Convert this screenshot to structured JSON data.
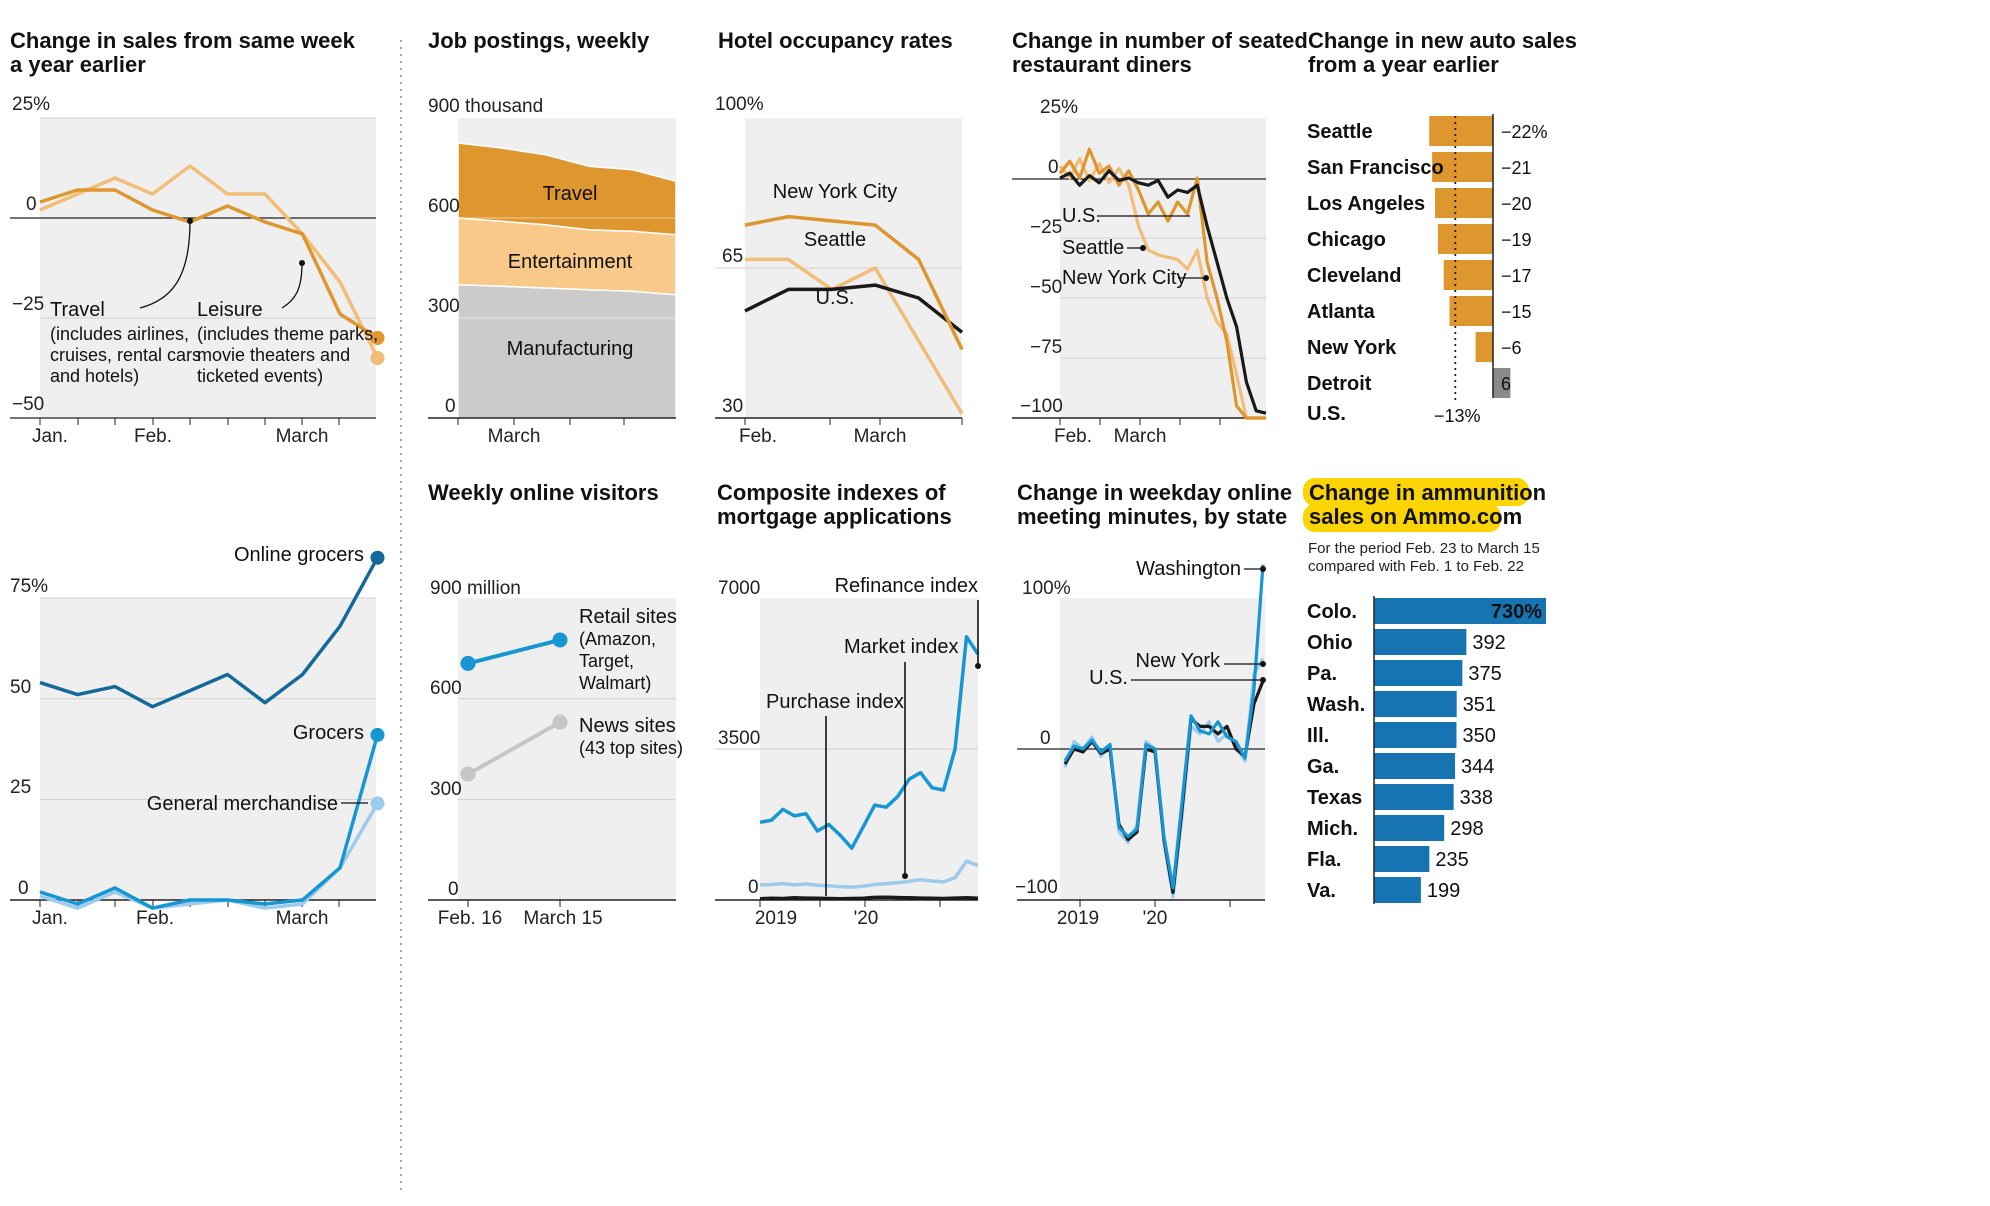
{
  "colors": {
    "orange": "#de962e",
    "light_orange": "#f2bd78",
    "peach": "#f9c98a",
    "gray_area": "#cbcbcb",
    "panel_bg": "#efefef",
    "black": "#1a1a1a",
    "dark_blue": "#14699b",
    "mid_blue": "#1696d2",
    "light_blue": "#9ccbeb",
    "light_gray_line": "#c6c6c6",
    "highlight": "#fbd404",
    "bar_blue": "#1674b3",
    "bar_gray": "#8a8a8a"
  },
  "chart_data": [
    {
      "id": "sales",
      "type": "line",
      "title": "Change in sales from same week a year earlier",
      "x_labels": [
        "Jan.",
        "Feb.",
        "March"
      ],
      "y_ticks": [
        "25%",
        "0",
        "-25",
        "-50"
      ],
      "ylim": [
        -50,
        25
      ],
      "series": [
        {
          "name": "Travel",
          "color_key": "orange",
          "values": [
            4,
            7,
            7,
            2,
            -1,
            3,
            -1,
            -4,
            -24,
            -30
          ]
        },
        {
          "name": "Leisure",
          "color_key": "light_orange",
          "values": [
            2,
            6,
            10,
            6,
            13,
            6,
            6,
            -4,
            -16,
            -35
          ]
        }
      ],
      "annotations": [
        {
          "name": "Travel",
          "detail": [
            "(includes airlines,",
            "cruises, rental cars",
            "and hotels)"
          ]
        },
        {
          "name": "Leisure",
          "detail": [
            "(includes theme parks,",
            "movie theaters and",
            "ticketed events)"
          ]
        }
      ]
    },
    {
      "id": "jobs",
      "type": "area",
      "title": "Job postings, weekly",
      "x_labels": [
        "March"
      ],
      "y_ticks": [
        "900 thousand",
        "600",
        "300",
        "0"
      ],
      "ylim": [
        0,
        900
      ],
      "series": [
        {
          "name": "Manufacturing",
          "color_key": "gray_area",
          "values": [
            400,
            395,
            390,
            385,
            380,
            370
          ]
        },
        {
          "name": "Entertainment",
          "color_key": "peach",
          "values": [
            200,
            195,
            190,
            180,
            180,
            180
          ]
        },
        {
          "name": "Travel",
          "color_key": "orange",
          "values": [
            225,
            220,
            210,
            190,
            185,
            160
          ]
        }
      ]
    },
    {
      "id": "hotel",
      "type": "line",
      "title": "Hotel occupancy rates",
      "x_labels": [
        "Feb.",
        "March"
      ],
      "y_ticks": [
        "100%",
        "65",
        "30"
      ],
      "ylim": [
        30,
        100
      ],
      "series": [
        {
          "name": "New York City",
          "color_key": "orange",
          "values": [
            75,
            77,
            76,
            75,
            67,
            46
          ]
        },
        {
          "name": "Seattle",
          "color_key": "light_orange",
          "values": [
            67,
            67,
            60,
            65,
            48,
            31
          ]
        },
        {
          "name": "U.S.",
          "color_key": "black",
          "values": [
            55,
            60,
            60,
            61,
            58,
            50
          ]
        }
      ]
    },
    {
      "id": "diners",
      "type": "line",
      "title": "Change in number of seated restaurant diners",
      "x_labels": [
        "Feb.",
        "March"
      ],
      "y_ticks": [
        "25%",
        "0",
        "-25",
        "-50",
        "-75",
        "-100"
      ],
      "ylim": [
        -100,
        25
      ],
      "series": [
        {
          "name": "U.S.",
          "color_key": "black",
          "values": [
            0,
            2,
            -3,
            1,
            -2,
            3,
            -1,
            0,
            -2,
            -3,
            -1,
            -8,
            -5,
            -6,
            -3,
            -20,
            -35,
            -50,
            -62,
            -85,
            -97,
            -98
          ]
        },
        {
          "name": "Seattle",
          "color_key": "light_orange",
          "values": [
            5,
            0,
            8,
            -1,
            6,
            -2,
            4,
            -3,
            -20,
            -30,
            -32,
            -33,
            -34,
            -38,
            -30,
            -50,
            -60,
            -65,
            -82,
            -100,
            -100,
            -100
          ]
        },
        {
          "name": "New York City",
          "color_key": "orange",
          "values": [
            2,
            7,
            0,
            12,
            2,
            5,
            -3,
            3,
            -5,
            -15,
            -10,
            -18,
            -10,
            -15,
            0,
            -35,
            -50,
            -68,
            -95,
            -100,
            -100,
            -100
          ]
        }
      ]
    },
    {
      "id": "auto",
      "type": "bar",
      "title": "Change in new auto sales from a year earlier",
      "categories": [
        "Seattle",
        "San Francisco",
        "Los Angeles",
        "Chicago",
        "Cleveland",
        "Atlanta",
        "New York",
        "Detroit"
      ],
      "values": [
        -22,
        -21,
        -20,
        -19,
        -17,
        -15,
        -6,
        6
      ],
      "value_labels": [
        "-22%",
        "-21",
        "-20",
        "-19",
        "-17",
        "-15",
        "-6",
        "6"
      ],
      "reference": {
        "label": "U.S.",
        "value": -13,
        "value_label": "-13%"
      }
    },
    {
      "id": "grocers",
      "type": "line",
      "title": "",
      "x_labels": [
        "Jan.",
        "Feb.",
        "March"
      ],
      "y_ticks": [
        "75%",
        "50",
        "25",
        "0"
      ],
      "ylim": [
        0,
        75
      ],
      "series": [
        {
          "name": "Online grocers",
          "color_key": "dark_blue",
          "values": [
            54,
            51,
            53,
            48,
            52,
            56,
            49,
            56,
            68,
            85
          ]
        },
        {
          "name": "Grocers",
          "color_key": "mid_blue",
          "values": [
            2,
            -1,
            3,
            -2,
            0,
            0,
            -1,
            0,
            8,
            41
          ]
        },
        {
          "name": "General merchandise",
          "color_key": "light_blue",
          "values": [
            1,
            -2,
            2,
            -2,
            -1,
            0,
            -2,
            -1,
            8,
            24
          ]
        }
      ]
    },
    {
      "id": "visitors",
      "type": "line",
      "title": "Weekly online visitors",
      "x_labels": [
        "Feb. 16",
        "March 15"
      ],
      "y_ticks": [
        "900 million",
        "600",
        "300",
        "0"
      ],
      "ylim": [
        0,
        900
      ],
      "series": [
        {
          "name": "Retail sites",
          "detail": [
            "(Amazon,",
            "Target,",
            "Walmart)"
          ],
          "color_key": "mid_blue",
          "values": [
            705,
            775
          ]
        },
        {
          "name": "News sites",
          "detail": [
            "(43 top sites)"
          ],
          "color_key": "light_gray_line",
          "values": [
            375,
            530
          ]
        }
      ]
    },
    {
      "id": "mortgage",
      "type": "line",
      "title": "Composite indexes of mortgage applications",
      "x_labels": [
        "2019",
        "'20"
      ],
      "y_ticks": [
        "7000",
        "3500",
        "0"
      ],
      "ylim": [
        0,
        7000
      ],
      "series": [
        {
          "name": "Refinance index",
          "color_key": "mid_blue",
          "values": [
            1800,
            1850,
            2100,
            1950,
            2000,
            1600,
            1750,
            1500,
            1200,
            1700,
            2200,
            2150,
            2400,
            2800,
            2950,
            2600,
            2550,
            3500,
            6100,
            5700
          ]
        },
        {
          "name": "Market index",
          "color_key": "light_blue",
          "values": [
            350,
            360,
            380,
            350,
            370,
            340,
            330,
            310,
            300,
            320,
            360,
            380,
            400,
            430,
            470,
            440,
            420,
            520,
            900,
            800
          ]
        },
        {
          "name": "Purchase index",
          "color_key": "black",
          "values": [
            30,
            40,
            35,
            50,
            45,
            40,
            35,
            30,
            35,
            40,
            60,
            65,
            55,
            50,
            45,
            40,
            35,
            45,
            50,
            40
          ]
        }
      ]
    },
    {
      "id": "meetings",
      "type": "line",
      "title": "Change in weekday online meeting minutes, by state",
      "x_labels": [
        "2019",
        "'20"
      ],
      "y_ticks": [
        "100%",
        "0",
        "-100"
      ],
      "ylim": [
        -100,
        100
      ],
      "series": [
        {
          "name": "U.S.",
          "color_key": "black",
          "values": [
            -10,
            0,
            -2,
            5,
            -3,
            0,
            -50,
            -60,
            -55,
            0,
            -2,
            -60,
            -95,
            -40,
            20,
            15,
            15,
            10,
            15,
            0,
            -5,
            30,
            45
          ]
        },
        {
          "name": "New York",
          "color_key": "light_blue",
          "values": [
            -12,
            5,
            0,
            8,
            -5,
            2,
            -55,
            -62,
            -50,
            5,
            0,
            -62,
            -98,
            -45,
            15,
            10,
            18,
            5,
            10,
            2,
            -8,
            50,
            60
          ]
        },
        {
          "name": "Washington",
          "color_key": "mid_blue",
          "values": [
            -8,
            2,
            0,
            6,
            -2,
            3,
            -52,
            -58,
            -53,
            3,
            0,
            -58,
            -92,
            -35,
            22,
            12,
            10,
            18,
            8,
            5,
            -6,
            40,
            122
          ]
        }
      ]
    },
    {
      "id": "ammo",
      "type": "bar",
      "title": "Change in ammunition sales on Ammo.com",
      "subtitle": [
        "For the period Feb. 23 to March 15",
        "compared with Feb. 1 to Feb. 22"
      ],
      "categories": [
        "Colo.",
        "Ohio",
        "Pa.",
        "Wash.",
        "Ill.",
        "Ga.",
        "Texas",
        "Mich.",
        "Fla.",
        "Va."
      ],
      "values": [
        730,
        392,
        375,
        351,
        350,
        344,
        338,
        298,
        235,
        199
      ],
      "value_labels": [
        "730%",
        "392",
        "375",
        "351",
        "350",
        "344",
        "338",
        "298",
        "235",
        "199"
      ]
    }
  ]
}
